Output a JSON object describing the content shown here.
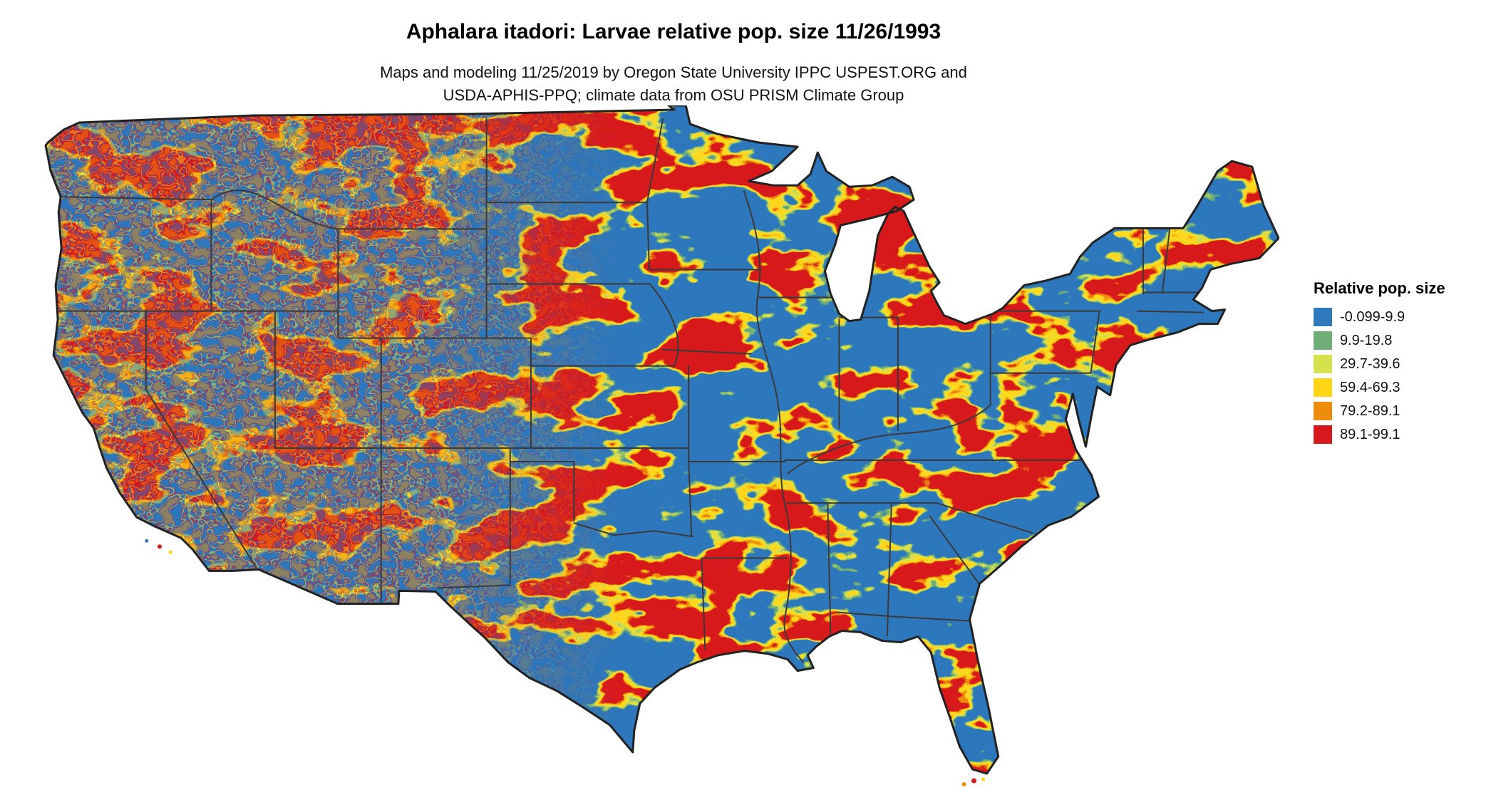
{
  "title": "Aphalara itadori: Larvae relative pop. size 11/26/1993",
  "subtitle": {
    "line1": "Maps and modeling 11/25/2019 by Oregon State University IPPC USPEST.ORG and",
    "line2": "USDA-APHIS-PPQ; climate data from OSU PRISM Climate Group"
  },
  "map": {
    "region": "Continental United States",
    "layer": "Larvae relative population size raster"
  },
  "legend": {
    "title": "Relative pop. size",
    "items": [
      {
        "label": "-0.099-9.9",
        "color": "#2e7abc"
      },
      {
        "label": "9.9-19.8",
        "color": "#6fae77"
      },
      {
        "label": "29.7-39.6",
        "color": "#d6e14e"
      },
      {
        "label": "59.4-69.3",
        "color": "#ffd514"
      },
      {
        "label": "79.2-89.1",
        "color": "#ee8c0c"
      },
      {
        "label": "89.1-99.1",
        "color": "#d6191c"
      }
    ]
  }
}
